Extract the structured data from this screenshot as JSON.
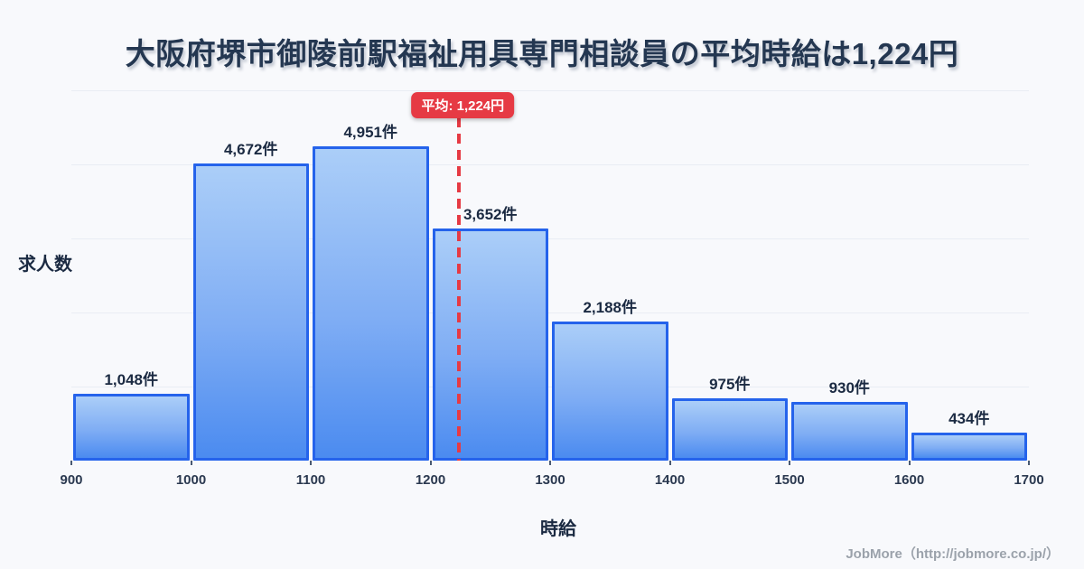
{
  "title": "大阪府堺市御陵前駅福祉用具専門相談員の平均時給は1,224円",
  "footer": {
    "credit": "JobMore（http://jobmore.co.jp/）"
  },
  "colors": {
    "background": "#f8f9fc",
    "title_text": "#243751",
    "bar_fill_top": "#abcef8",
    "bar_fill_bottom": "#4b8bf0",
    "bar_border": "#2563eb",
    "gridline": "#e9edf4",
    "mean_accent": "#e63a44",
    "label_text": "#1b2a42",
    "tick_text": "#2b3950",
    "footer_text": "#9ba2ab"
  },
  "chart_data": {
    "type": "bar",
    "title": "大阪府堺市御陵前駅福祉用具専門相談員の平均時給は1,224円",
    "xlabel": "時給",
    "ylabel": "求人数",
    "bin_edges": [
      900,
      1000,
      1100,
      1200,
      1300,
      1400,
      1500,
      1600,
      1700
    ],
    "values": [
      1048,
      4672,
      4951,
      3652,
      2188,
      975,
      930,
      434
    ],
    "value_labels": [
      "1,048件",
      "4,672件",
      "4,951件",
      "3,652件",
      "2,188件",
      "975件",
      "930件",
      "434件"
    ],
    "x_tick_labels": [
      "900",
      "1000",
      "1100",
      "1200",
      "1300",
      "1400",
      "1500",
      "1600",
      "1700"
    ],
    "xlim": [
      900,
      1700
    ],
    "ylim": [
      0,
      5830
    ],
    "gridline_count": 5,
    "grid": "horizontal",
    "legend": "none",
    "y_tick_labels": "none",
    "mean_line": {
      "x": 1224,
      "label": "平均: 1,224円",
      "color": "#e63a44",
      "style": "dashed"
    }
  }
}
